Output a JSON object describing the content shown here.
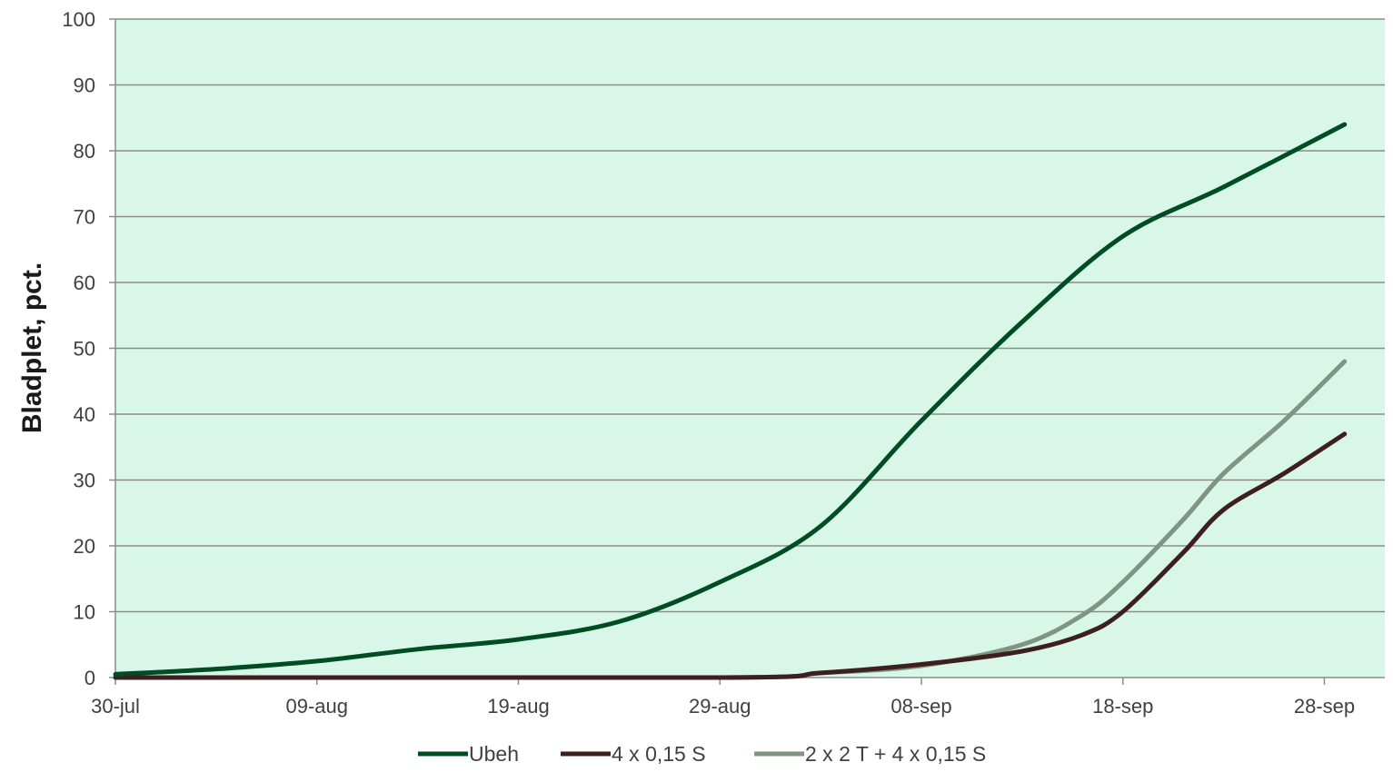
{
  "chart_data": {
    "type": "line",
    "title": "",
    "xlabel": "",
    "ylabel": "Bladplet, pct.",
    "ylim": [
      0,
      100
    ],
    "yticks": [
      "0",
      "10",
      "20",
      "30",
      "40",
      "50",
      "60",
      "70",
      "80",
      "90",
      "100"
    ],
    "x_axis": {
      "type": "date",
      "range": [
        "2021-07-30",
        "2021-10-01"
      ],
      "ticks": [
        {
          "date": "2021-07-30",
          "label": "30-jul"
        },
        {
          "date": "2021-08-09",
          "label": "09-aug"
        },
        {
          "date": "2021-08-19",
          "label": "19-aug"
        },
        {
          "date": "2021-08-29",
          "label": "29-aug"
        },
        {
          "date": "2021-09-08",
          "label": "08-sep"
        },
        {
          "date": "2021-09-18",
          "label": "18-sep"
        },
        {
          "date": "2021-09-28",
          "label": "28-sep"
        }
      ]
    },
    "grid": "horizontal",
    "legend_position": "bottom",
    "plot_background": "#d9f7e8",
    "series": [
      {
        "name": "Ubeh",
        "color": "#004d24",
        "points": [
          [
            "2021-07-30",
            0.5
          ],
          [
            "2021-08-04",
            1.3
          ],
          [
            "2021-08-09",
            2.5
          ],
          [
            "2021-08-14",
            4.3
          ],
          [
            "2021-08-19",
            5.8
          ],
          [
            "2021-08-24",
            8.5
          ],
          [
            "2021-08-29",
            14.5
          ],
          [
            "2021-09-03",
            23.0
          ],
          [
            "2021-09-08",
            39.0
          ],
          [
            "2021-09-13",
            54.0
          ],
          [
            "2021-09-18",
            67.0
          ],
          [
            "2021-09-23",
            74.5
          ],
          [
            "2021-09-29",
            84.0
          ]
        ]
      },
      {
        "name": "4 x 0,15 S",
        "color": "#3d1f20",
        "points": [
          [
            "2021-07-30",
            0
          ],
          [
            "2021-08-29",
            0
          ],
          [
            "2021-09-03",
            0.7
          ],
          [
            "2021-09-08",
            2.0
          ],
          [
            "2021-09-13",
            4.0
          ],
          [
            "2021-09-16",
            6.5
          ],
          [
            "2021-09-18",
            10.0
          ],
          [
            "2021-09-21",
            19.0
          ],
          [
            "2021-09-23",
            25.5
          ],
          [
            "2021-09-26",
            31.0
          ],
          [
            "2021-09-29",
            37.0
          ]
        ]
      },
      {
        "name": "2 x 2 T + 4 x 0,15 S",
        "color": "#7f9483",
        "points": [
          [
            "2021-07-30",
            0
          ],
          [
            "2021-08-29",
            0
          ],
          [
            "2021-09-03",
            0.7
          ],
          [
            "2021-09-08",
            1.8
          ],
          [
            "2021-09-13",
            5.0
          ],
          [
            "2021-09-16",
            9.5
          ],
          [
            "2021-09-18",
            14.5
          ],
          [
            "2021-09-21",
            24.0
          ],
          [
            "2021-09-23",
            31.0
          ],
          [
            "2021-09-26",
            39.0
          ],
          [
            "2021-09-29",
            48.0
          ]
        ]
      }
    ]
  }
}
